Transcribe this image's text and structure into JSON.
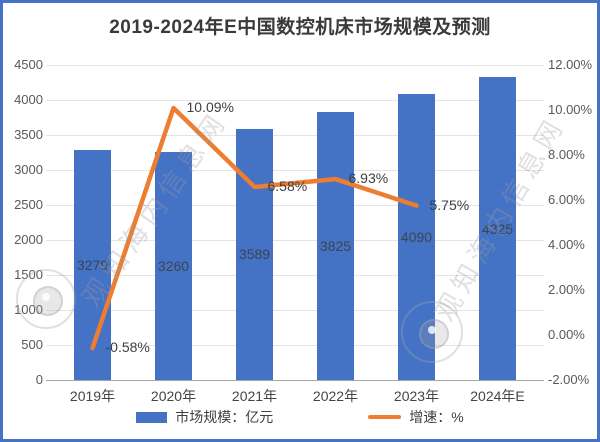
{
  "title": "2019-2024年E中国数控机床市场规模及预测",
  "watermark": {
    "text": "观知海内信息网"
  },
  "colors": {
    "bar": "#4472C4",
    "line": "#ED7D31",
    "frame": "#4472C4",
    "grid": "#e4e4e4",
    "axis": "#a6a6a6",
    "tick_text": "#595959",
    "value_text": "#3d4450",
    "point_text": "#404040",
    "title_text": "#3a3a3a"
  },
  "chart_data": {
    "type": "bar",
    "title": "2019-2024年E中国数控机床市场规模及预测",
    "categories": [
      "2019年",
      "2020年",
      "2021年",
      "2022年",
      "2023年",
      "2024年E"
    ],
    "series": [
      {
        "name": "市场规模：亿元",
        "type": "bar",
        "axis": "left",
        "color": "#4472C4",
        "values": [
          3279,
          3260,
          3589,
          3825,
          4090,
          4325
        ],
        "value_labels": [
          "3279",
          "3260",
          "3589",
          "3825",
          "4090",
          "4325"
        ]
      },
      {
        "name": "增速：%",
        "type": "line",
        "axis": "right",
        "color": "#ED7D31",
        "values": [
          -0.58,
          10.09,
          6.58,
          6.93,
          5.75,
          null
        ],
        "point_labels": [
          "-0.58%",
          "10.09%",
          "6.58%",
          "6.93%",
          "5.75%",
          null
        ]
      }
    ],
    "left_axis": {
      "min": 0,
      "max": 4500,
      "step": 500,
      "ticks": [
        {
          "value": 0,
          "label": "0"
        },
        {
          "value": 500,
          "label": "500"
        },
        {
          "value": 1000,
          "label": "1000"
        },
        {
          "value": 1500,
          "label": "1500"
        },
        {
          "value": 2000,
          "label": "2000"
        },
        {
          "value": 2500,
          "label": "2500"
        },
        {
          "value": 3000,
          "label": "3000"
        },
        {
          "value": 3500,
          "label": "3500"
        },
        {
          "value": 4000,
          "label": "4000"
        },
        {
          "value": 4500,
          "label": "4500"
        }
      ]
    },
    "right_axis": {
      "min": -2,
      "max": 12,
      "step": 2,
      "ticks": [
        {
          "value": -2,
          "label": "-2.00%"
        },
        {
          "value": 0,
          "label": "0.00%"
        },
        {
          "value": 2,
          "label": "2.00%"
        },
        {
          "value": 4,
          "label": "4.00%"
        },
        {
          "value": 6,
          "label": "6.00%"
        },
        {
          "value": 8,
          "label": "8.00%"
        },
        {
          "value": 10,
          "label": "10.00%"
        },
        {
          "value": 12,
          "label": "12.00%"
        }
      ]
    },
    "grid": true,
    "legend_position": "bottom",
    "legend": [
      "市场规模：亿元",
      "增速：%"
    ]
  }
}
